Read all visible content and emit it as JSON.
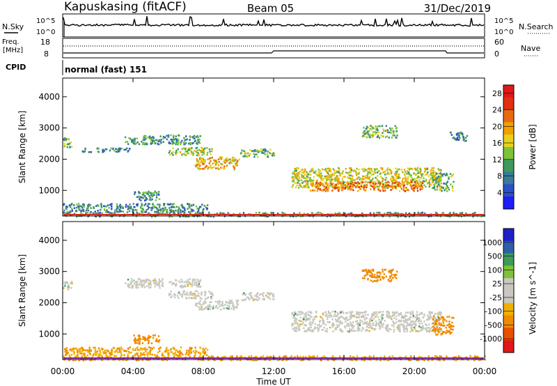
{
  "header": {
    "station": "Kapuskasing (fitACF)",
    "beam": "Beam 05",
    "date": "31/Dec/2019"
  },
  "side_labels": {
    "nsky": "N.Sky",
    "freq": "Freq.",
    "freq_unit": "[MHz]",
    "cpid": "CPID",
    "nsearch": "N.Search",
    "nave": "Nave"
  },
  "noise_axis": {
    "left_ticks": [
      "10^5",
      "10^0"
    ],
    "right_ticks": [
      "10^5",
      "10^0"
    ]
  },
  "freq_axis": {
    "left_ticks": [
      "18",
      "8"
    ],
    "right_ticks": [
      "60",
      "0"
    ]
  },
  "cpid_text": "normal (fast) 151",
  "colors": {
    "power": [
      "#1e1ef5",
      "#2b4fc4",
      "#3a7a9a",
      "#3f9a5a",
      "#7dc23a",
      "#e6d21e",
      "#f0a000",
      "#e86a10",
      "#e03010",
      "#e01818"
    ],
    "velocity": [
      "#2020c8",
      "#2f5fa8",
      "#3f9a5a",
      "#7dc23a",
      "#c8c8c0",
      "#c8c8c0",
      "#f0b000",
      "#f08a00",
      "#e85000",
      "#e01818"
    ]
  },
  "chart_data": [
    {
      "type": "heatmap",
      "title": "",
      "xlabel": "Time UT",
      "ylabel": "Slant Range [km]",
      "x_ticks": [
        "00:00",
        "04:00",
        "08:00",
        "12:00",
        "16:00",
        "20:00",
        "00:00"
      ],
      "xlim_hours": [
        0,
        24
      ],
      "ylim": [
        180,
        4600
      ],
      "y_ticks": [
        1000,
        2000,
        3000,
        4000
      ],
      "colorbar": {
        "label": "Power [dB]",
        "ticks": [
          4,
          8,
          12,
          16,
          20,
          24,
          28
        ],
        "range": [
          0,
          30
        ]
      },
      "regions": [
        {
          "t": [
            0.0,
            24.0
          ],
          "r": [
            180,
            320
          ],
          "value": 10
        },
        {
          "t": [
            0.0,
            8.2
          ],
          "r": [
            320,
            600
          ],
          "value": 9
        },
        {
          "t": [
            0.0,
            0.5
          ],
          "r": [
            2400,
            2700
          ],
          "value": 12
        },
        {
          "t": [
            1.0,
            3.8
          ],
          "r": [
            2250,
            2380
          ],
          "value": 8
        },
        {
          "t": [
            3.5,
            7.8
          ],
          "r": [
            2500,
            2800
          ],
          "value": 10
        },
        {
          "t": [
            6.0,
            8.5
          ],
          "r": [
            2150,
            2400
          ],
          "value": 14
        },
        {
          "t": [
            7.5,
            10.0
          ],
          "r": [
            1700,
            2100
          ],
          "value": 18
        },
        {
          "t": [
            10.0,
            12.0
          ],
          "r": [
            2100,
            2350
          ],
          "value": 12
        },
        {
          "t": [
            4.0,
            5.5
          ],
          "r": [
            700,
            1000
          ],
          "value": 9
        },
        {
          "t": [
            13.0,
            21.5
          ],
          "r": [
            1100,
            1750
          ],
          "value": 16
        },
        {
          "t": [
            14.0,
            20.5
          ],
          "r": [
            1000,
            1300
          ],
          "value": 22
        },
        {
          "t": [
            21.0,
            22.2
          ],
          "r": [
            1000,
            1600
          ],
          "value": 12
        },
        {
          "t": [
            22.0,
            23.0
          ],
          "r": [
            2600,
            2900
          ],
          "value": 8
        },
        {
          "t": [
            17.0,
            19.0
          ],
          "r": [
            2700,
            3100
          ],
          "value": 12
        }
      ]
    },
    {
      "type": "heatmap",
      "title": "",
      "xlabel": "Time UT",
      "ylabel": "Slant Range [km]",
      "x_ticks": [
        "00:00",
        "04:00",
        "08:00",
        "12:00",
        "16:00",
        "20:00",
        "00:00"
      ],
      "xlim_hours": [
        0,
        24
      ],
      "ylim": [
        180,
        4600
      ],
      "y_ticks": [
        1000,
        2000,
        3000,
        4000
      ],
      "colorbar": {
        "label": "Velocity [m s^-1]",
        "ticks": [
          "1000",
          "500",
          "100",
          "25",
          "-25",
          "-100",
          "-500",
          "-1000"
        ]
      },
      "regions": [
        {
          "t": [
            0.0,
            24.0
          ],
          "r": [
            180,
            320
          ],
          "value": -100
        },
        {
          "t": [
            0.0,
            8.2
          ],
          "r": [
            320,
            600
          ],
          "value": -100
        },
        {
          "t": [
            0.0,
            0.5
          ],
          "r": [
            2400,
            2700
          ],
          "value": 0
        },
        {
          "t": [
            3.5,
            7.8
          ],
          "r": [
            2500,
            2800
          ],
          "value": 0
        },
        {
          "t": [
            6.0,
            8.5
          ],
          "r": [
            2150,
            2400
          ],
          "value": 0
        },
        {
          "t": [
            7.5,
            10.0
          ],
          "r": [
            1800,
            2100
          ],
          "value": 0
        },
        {
          "t": [
            10.0,
            12.0
          ],
          "r": [
            2100,
            2350
          ],
          "value": 0
        },
        {
          "t": [
            4.0,
            5.5
          ],
          "r": [
            700,
            1000
          ],
          "value": -300
        },
        {
          "t": [
            13.0,
            21.5
          ],
          "r": [
            1100,
            1750
          ],
          "value": 0
        },
        {
          "t": [
            21.0,
            22.2
          ],
          "r": [
            1000,
            1600
          ],
          "value": -200
        },
        {
          "t": [
            17.0,
            19.0
          ],
          "r": [
            2700,
            3100
          ],
          "value": -300
        }
      ]
    }
  ]
}
